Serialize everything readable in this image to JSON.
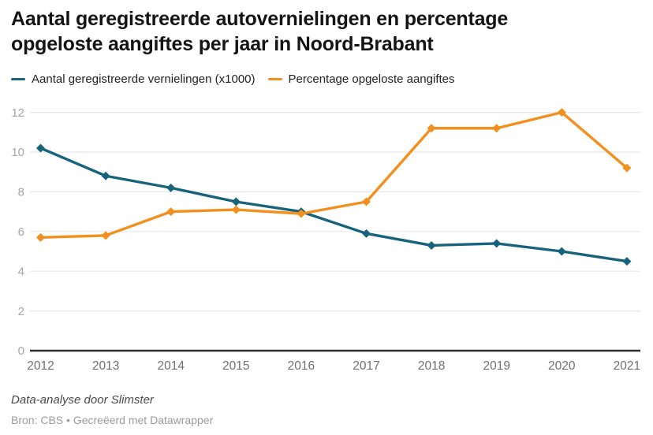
{
  "title": "Aantal geregistreerde autovernielingen en percentage opgeloste aangiftes per jaar in Noord-Brabant",
  "chart_data": {
    "type": "line",
    "x": [
      "2012",
      "2013",
      "2014",
      "2015",
      "2016",
      "2017",
      "2018",
      "2019",
      "2020",
      "2021"
    ],
    "series": [
      {
        "name": "Aantal geregistreerde vernielingen (x1000)",
        "color": "#17637c",
        "values": [
          10.2,
          8.8,
          8.2,
          7.5,
          7.0,
          5.9,
          5.3,
          5.4,
          5.0,
          4.5
        ]
      },
      {
        "name": "Percentage opgeloste aangiftes",
        "color": "#f28f1d",
        "values": [
          5.7,
          5.8,
          7.0,
          7.1,
          6.9,
          7.5,
          11.2,
          11.2,
          12.0,
          9.2
        ]
      }
    ],
    "title": "Aantal geregistreerde autovernielingen en percentage opgeloste aangiftes per jaar in Noord-Brabant",
    "xlabel": "",
    "ylabel": "",
    "ylim": [
      0,
      12
    ],
    "yticks": [
      0,
      2,
      4,
      6,
      8,
      10,
      12
    ],
    "grid": true,
    "legend_position": "top",
    "marker": "diamond",
    "gridline_color": "#e8e8e8",
    "baseline_color": "#2c2c2c"
  },
  "footer": {
    "byline": "Data-analyse door Slimster",
    "source": "Bron: CBS • Gecreëerd met Datawrapper"
  }
}
